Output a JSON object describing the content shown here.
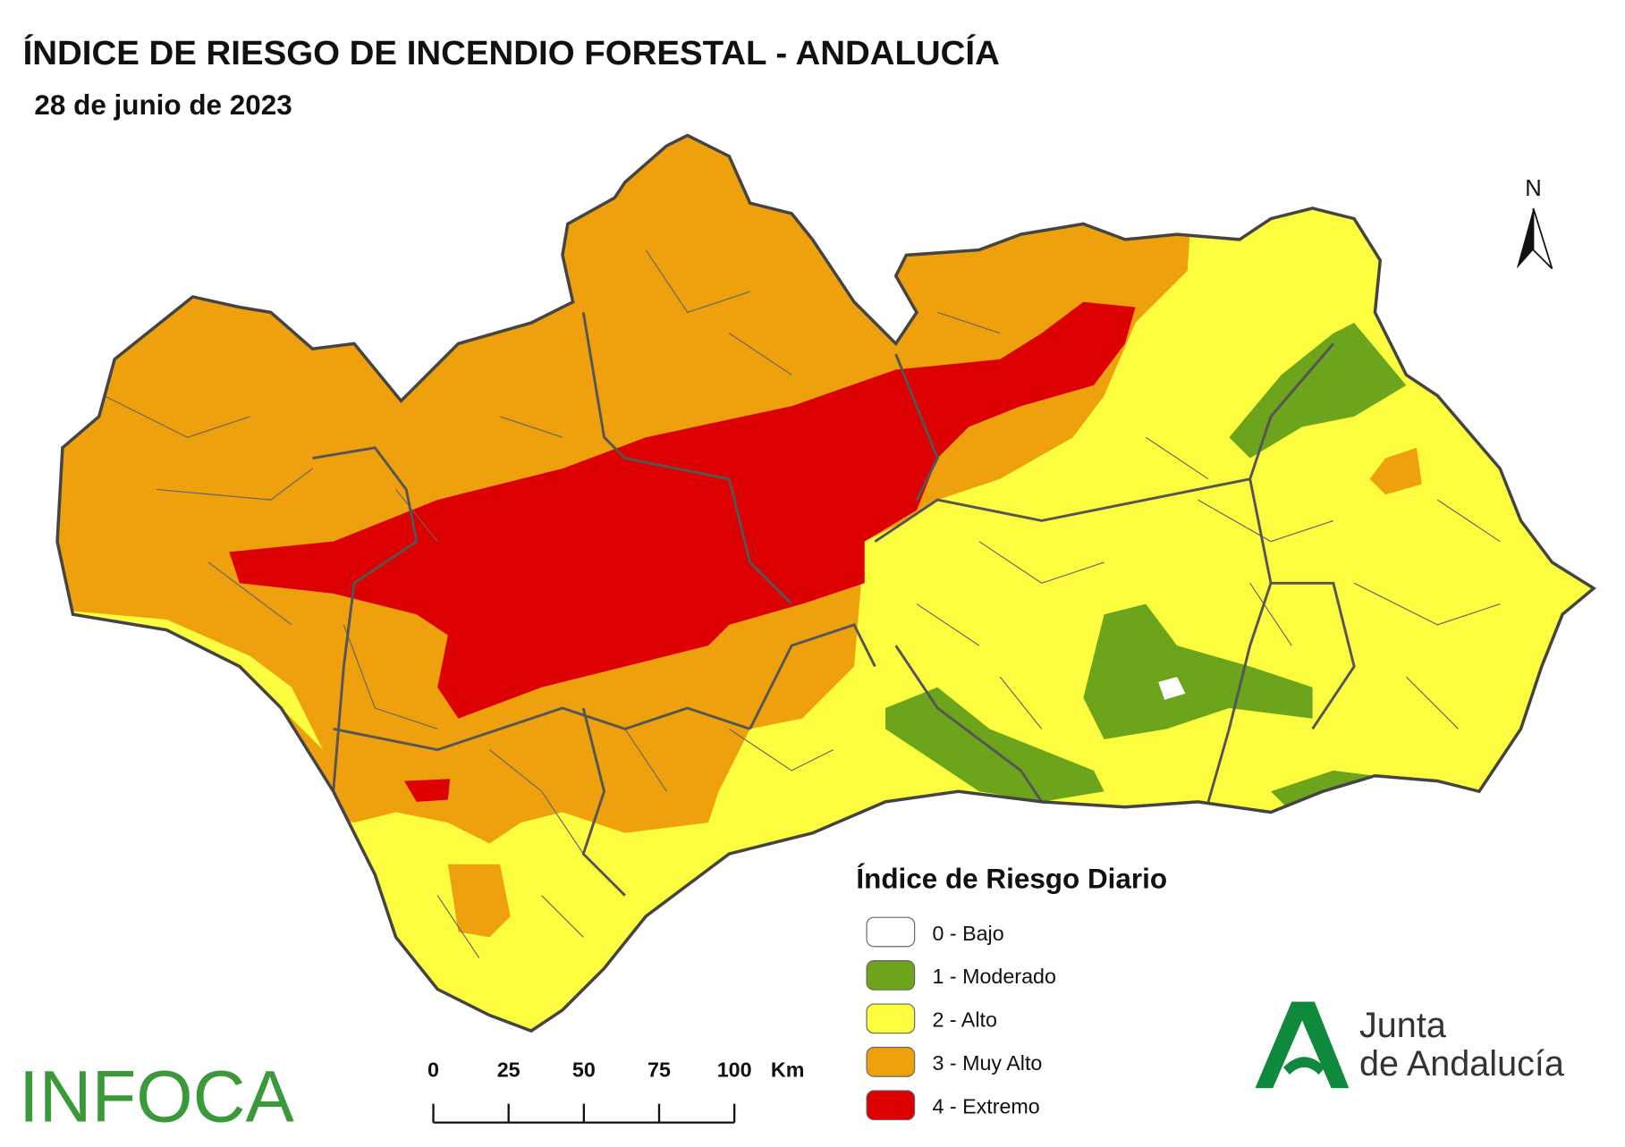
{
  "header": {
    "title": "ÍNDICE DE RIESGO DE INCENDIO FORESTAL - ANDALUCÍA",
    "date": "28 de junio de 2023"
  },
  "north_label": "N",
  "legend": {
    "title": "Índice de Riesgo Diario",
    "items": [
      {
        "label": "0 - Bajo",
        "color": "#ffffff"
      },
      {
        "label": "1 - Moderado",
        "color": "#6ca51c"
      },
      {
        "label": "2 - Alto",
        "color": "#fdfd40"
      },
      {
        "label": "3 - Muy Alto",
        "color": "#eea10c"
      },
      {
        "label": "4 - Extremo",
        "color": "#dc0000"
      }
    ]
  },
  "scale_bar": {
    "ticks": [
      0,
      25,
      50,
      75,
      100
    ],
    "unit": "Km"
  },
  "logos": {
    "infoca": "INFOCA",
    "junta": [
      "Junta",
      "de Andalucía"
    ]
  }
}
